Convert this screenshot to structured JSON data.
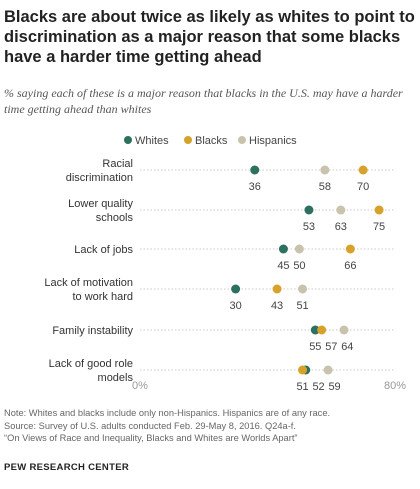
{
  "title": "Blacks are about twice as likely as whites to point to discrimination as a major reason that some blacks have a harder time getting ahead",
  "subtitle": "% saying each of these is a major reason that blacks in the U.S. may have a harder time getting ahead than whites",
  "notes": [
    "Note: Whites and blacks include only non-Hispanics. Hispanics are of any race.",
    "Source: Survey of U.S. adults conducted Feb. 29-May 8, 2016. Q24a-f.",
    "“On Views of Race and Inequality, Blacks and Whites are Worlds Apart”"
  ],
  "brand": "PEW RESEARCH CENTER",
  "chart_data": {
    "type": "scatter",
    "subtype": "dot-plot",
    "categories": [
      "Racial discrimination",
      "Lower quality schools",
      "Lack of jobs",
      "Lack of motivation to work hard",
      "Family instability",
      "Lack of good role models"
    ],
    "series": [
      {
        "name": "Whites",
        "color": "#2e7060",
        "values": [
          36,
          53,
          45,
          30,
          55,
          52
        ]
      },
      {
        "name": "Blacks",
        "color": "#d7a22a",
        "values": [
          70,
          75,
          66,
          43,
          57,
          51
        ]
      },
      {
        "name": "Hispanics",
        "color": "#c9c2ad",
        "values": [
          58,
          63,
          50,
          51,
          64,
          59
        ]
      }
    ],
    "xlim": [
      0,
      80
    ],
    "axis_labels": [
      "0%",
      "80%"
    ],
    "legend_placement": "top-center",
    "grid": false
  }
}
